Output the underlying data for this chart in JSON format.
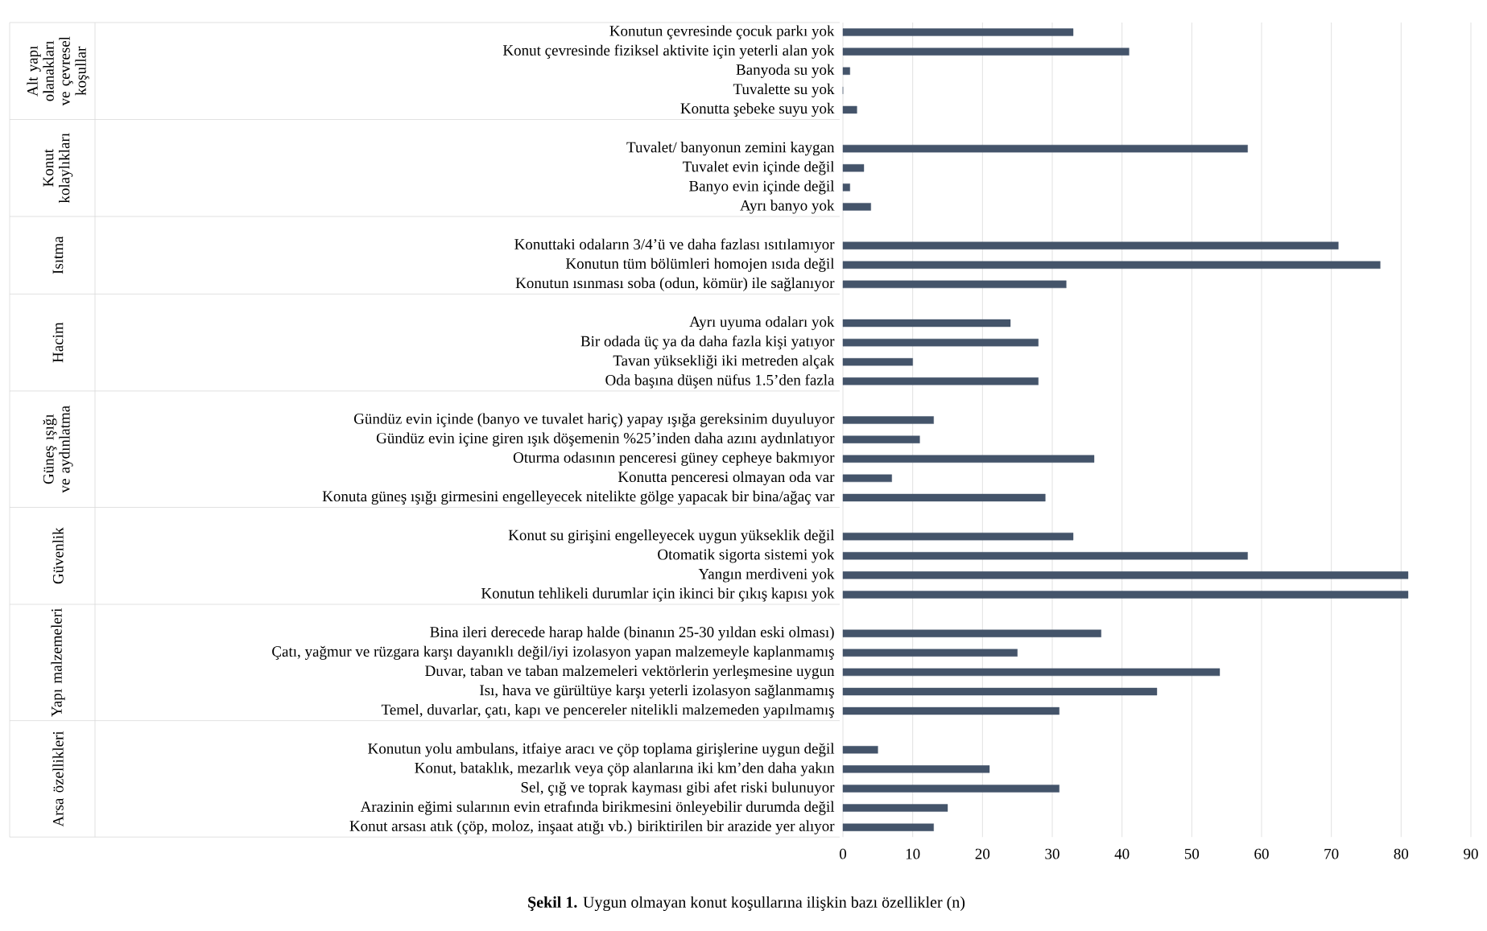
{
  "chart_data": {
    "type": "bar",
    "orientation": "horizontal",
    "title": "**Şekil 1.** Uygun olmayan konut koşullarına ilişkin bazı özellikler (n)",
    "categories": [
      "Konutun çevresinde çocuk parkı yok",
      "Konut çevresinde fiziksel aktivite için yeterli alan yok",
      "Banyoda su yok",
      "Tuvalette su yok",
      "Konutta şebeke suyu yok",
      null,
      "Tuvalet/ banyonun zemini kaygan",
      "Tuvalet evin içinde  değil",
      "Banyo evin içinde değil",
      "Ayrı banyo yok",
      null,
      "Konuttaki odaların 3/4’ü ve daha fazlası ısıtılamıyor",
      "Konutun tüm bölümleri homojen ısıda değil",
      "Konutun ısınması soba (odun, kömür) ile sağlanıyor",
      null,
      "Ayrı uyuma odaları yok",
      "Bir odada üç ya da daha fazla kişi yatıyor",
      "Tavan yüksekliği iki metreden alçak",
      "Oda başına düşen nüfus 1.5’den fazla",
      null,
      "Gündüz evin içinde (banyo ve tuvalet hariç) yapay ışığa gereksinim duyuluyor",
      "Gündüz evin içine giren ışık döşemenin %25’inden daha azını aydınlatıyor",
      "Oturma odasının penceresi güney cepheye bakmıyor",
      "Konutta penceresi olmayan oda var",
      "Konuta güneş ışığı girmesini engelleyecek nitelikte gölge yapacak bir bina/ağaç var",
      null,
      "Konut su girişini engelleyecek uygun yükseklik değil",
      "Otomatik sigorta sistemi yok",
      "Yangın merdiveni yok",
      "Konutun tehlikeli durumlar için ikinci bir çıkış kapısı yok",
      null,
      "Bina ileri derecede harap halde (binanın 25-30 yıldan eski olması)",
      "Çatı, yağmur ve rüzgara karşı dayanıklı değil/iyi izolasyon yapan malzemeyle kaplanmamış",
      "Duvar, taban ve taban malzemeleri vektörlerin yerleşmesine uygun",
      "Isı, hava ve gürültüye karşı yeterli izolasyon sağlanmamış",
      "Temel, duvarlar, çatı, kapı ve pencereler nitelikli malzemeden yapılmamış",
      null,
      "Konutun yolu ambulans, itfaiye aracı ve çöp toplama girişlerine uygun değil",
      "Konut, bataklık, mezarlık veya çöp alanlarına iki km’den daha yakın",
      "Sel, çığ ve toprak kayması gibi afet riski bulunuyor",
      "Arazinin eğimi sularının evin etrafında birikmesini önleyebilir durumda değil",
      "Konut arsası atık (çöp, moloz, inşaat atığı vb.) biriktirilen bir arazide yer alıyor"
    ],
    "values": [
      33,
      41,
      1,
      0,
      2,
      null,
      58,
      3,
      1,
      4,
      null,
      71,
      77,
      32,
      null,
      24,
      28,
      10,
      28,
      null,
      13,
      11,
      36,
      7,
      29,
      null,
      33,
      58,
      81,
      81,
      null,
      37,
      25,
      54,
      45,
      31,
      null,
      5,
      21,
      31,
      15,
      13
    ],
    "color": "#44546a",
    "xlim": [
      0,
      90
    ],
    "xticks": [
      0,
      10,
      20,
      30,
      40,
      50,
      60,
      70,
      80,
      90
    ],
    "grid": "x",
    "annotations": [
      "Alt yapı olanakları ve çevresel koşullar",
      "Konut kolaylıkları",
      "Isıtma",
      "Hacim",
      "Güneş ışığı ve aydınlatma",
      "Güvenlik",
      "Yapı malzemeleri",
      "Arsa özellikleri"
    ]
  }
}
